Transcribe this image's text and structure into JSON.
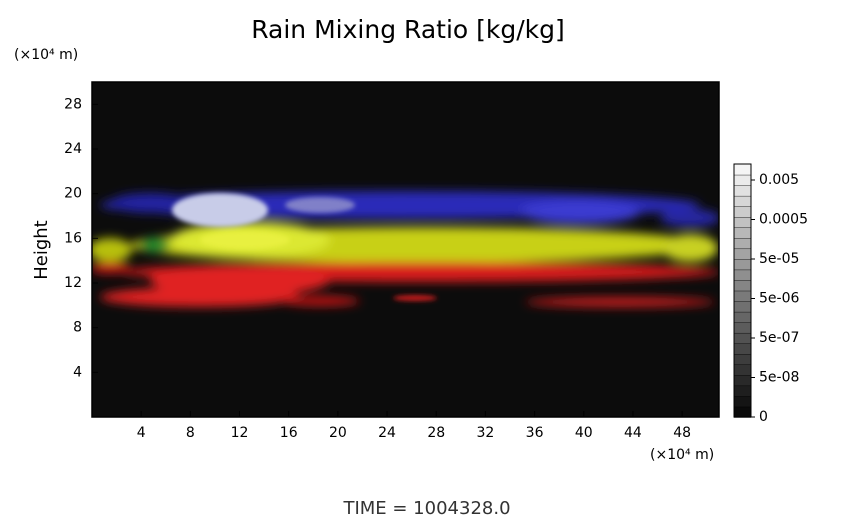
{
  "chart_data": {
    "type": "volume",
    "title": "Rain Mixing Ratio [kg/kg]",
    "y_label": "Height",
    "y_unit": "(×10⁴ m)",
    "x_unit": "(×10⁴ m)",
    "xlim": [
      0,
      51
    ],
    "xticks": [
      4,
      8,
      12,
      16,
      20,
      24,
      28,
      32,
      36,
      40,
      44,
      48
    ],
    "ylim": [
      0,
      30
    ],
    "yticks": [
      4,
      8,
      12,
      16,
      20,
      24,
      28
    ],
    "colorbar_ticks": [
      0.005,
      0.0005,
      {
        "value": 5e-05,
        "label": "5e-05"
      },
      {
        "value": 5e-06,
        "label": "5e-06"
      },
      {
        "value": 5e-07,
        "label": "5e-07"
      },
      {
        "value": 5e-08,
        "label": "5e-08"
      },
      0
    ],
    "footer": "TIME = 1004328.0"
  }
}
